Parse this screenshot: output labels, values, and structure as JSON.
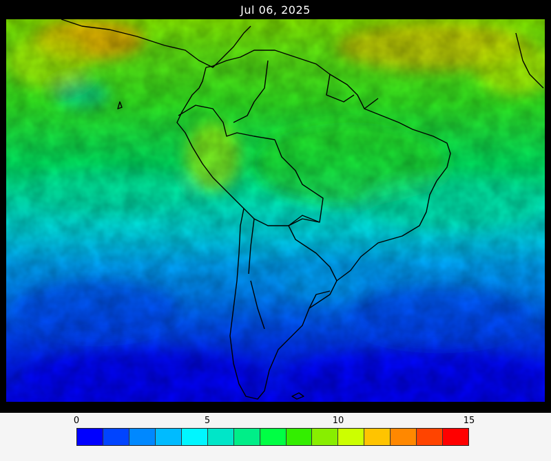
{
  "title": "Jul 06, 2025",
  "legend": {
    "ticks": [
      "0",
      "5",
      "10",
      "15"
    ],
    "colors": [
      "#0000ff",
      "#0044ff",
      "#0088ff",
      "#00bbff",
      "#00f6ff",
      "#00e6c8",
      "#00ee88",
      "#00ff44",
      "#33ee00",
      "#88ee00",
      "#ccff00",
      "#ffc400",
      "#ff8800",
      "#ff4400",
      "#ff0000"
    ]
  }
}
